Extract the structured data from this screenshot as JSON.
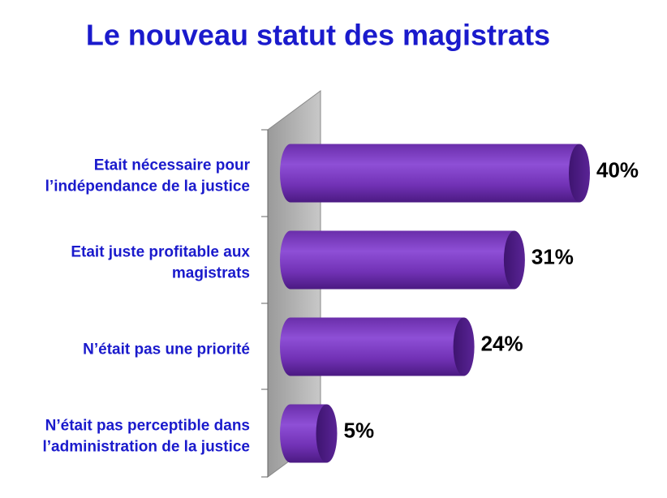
{
  "chart_data": {
    "type": "bar",
    "orientation": "horizontal",
    "title": "Le nouveau statut des magistrats",
    "categories": [
      [
        "Etait nécessaire pour",
        "l’indépendance de la justice"
      ],
      [
        "Etait juste profitable aux",
        "magistrats"
      ],
      [
        "N’était pas une priorité"
      ],
      [
        "N’était pas perceptible dans",
        "l’administration de la justice"
      ]
    ],
    "values": [
      40,
      31,
      24,
      5
    ],
    "value_labels": [
      "40%",
      "31%",
      "24%",
      "5%"
    ],
    "color": "#7a3cc0"
  }
}
